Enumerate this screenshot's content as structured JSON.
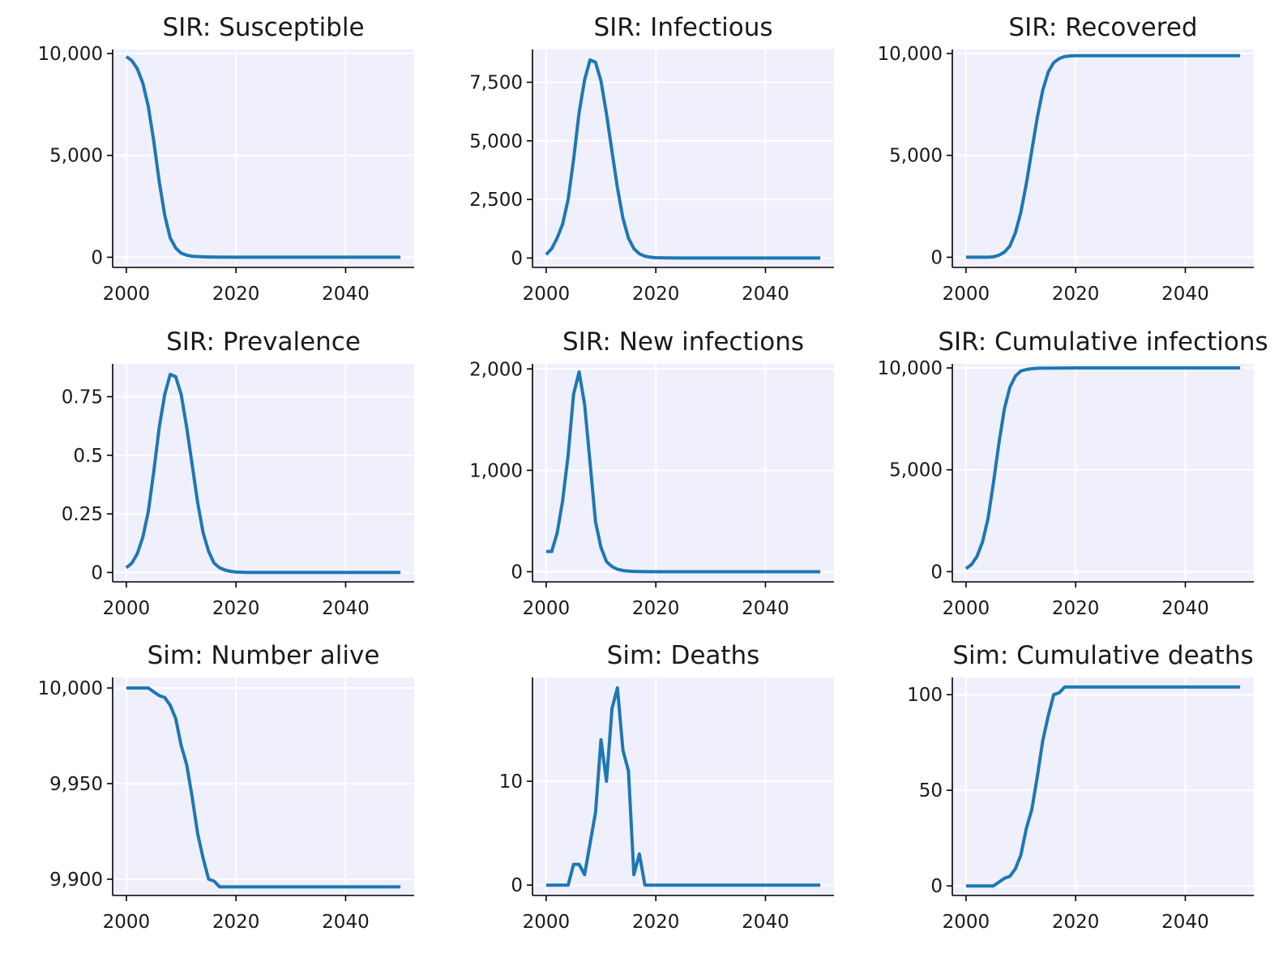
{
  "figure": {
    "line_color": "#1f77b4",
    "plot_bg": "#eff0fb",
    "grid_color": "#ffffff"
  },
  "chart_data": [
    {
      "type": "line",
      "title": "SIR: Susceptible",
      "xticks": [
        2000,
        2020,
        2040
      ],
      "xtick_labels": [
        "2000",
        "2020",
        "2040"
      ],
      "xlim": [
        1997.5,
        2052.5
      ],
      "yticks": [
        0,
        5000,
        10000
      ],
      "ytick_labels": [
        "0",
        "5,000",
        "10,000"
      ],
      "ylim": [
        -500,
        10200
      ],
      "grid": true,
      "series": [
        {
          "x": [
            2000,
            2001,
            2002,
            2003,
            2004,
            2005,
            2006,
            2007,
            2008,
            2009,
            2010,
            2011,
            2012,
            2014,
            2016,
            2020,
            2030,
            2040,
            2050
          ],
          "y": [
            9850,
            9650,
            9250,
            8550,
            7400,
            5700,
            3700,
            2050,
            950,
            450,
            200,
            100,
            50,
            20,
            10,
            0,
            0,
            0,
            0
          ]
        }
      ]
    },
    {
      "type": "line",
      "title": "SIR: Infectious",
      "xticks": [
        2000,
        2020,
        2040
      ],
      "xtick_labels": [
        "2000",
        "2020",
        "2040"
      ],
      "xlim": [
        1997.5,
        2052.5
      ],
      "yticks": [
        0,
        2500,
        5000,
        7500
      ],
      "ytick_labels": [
        "0",
        "2,500",
        "5,000",
        "7,500"
      ],
      "ylim": [
        -400,
        8900
      ],
      "grid": true,
      "series": [
        {
          "x": [
            2000,
            2001,
            2002,
            2003,
            2004,
            2005,
            2006,
            2007,
            2008,
            2009,
            2010,
            2011,
            2012,
            2013,
            2014,
            2015,
            2016,
            2017,
            2018,
            2019,
            2020,
            2022,
            2025,
            2030,
            2040,
            2050
          ],
          "y": [
            150,
            400,
            850,
            1450,
            2500,
            4200,
            6200,
            7600,
            8450,
            8350,
            7550,
            6150,
            4550,
            3000,
            1700,
            850,
            400,
            180,
            80,
            35,
            15,
            5,
            0,
            0,
            0,
            0
          ]
        }
      ]
    },
    {
      "type": "line",
      "title": "SIR: Recovered",
      "xticks": [
        2000,
        2020,
        2040
      ],
      "xtick_labels": [
        "2000",
        "2020",
        "2040"
      ],
      "xlim": [
        1997.5,
        2052.5
      ],
      "yticks": [
        0,
        5000,
        10000
      ],
      "ytick_labels": [
        "0",
        "5,000",
        "10,000"
      ],
      "ylim": [
        -500,
        10200
      ],
      "grid": true,
      "series": [
        {
          "x": [
            2000,
            2002,
            2004,
            2005,
            2006,
            2007,
            2008,
            2009,
            2010,
            2011,
            2012,
            2013,
            2014,
            2015,
            2016,
            2017,
            2018,
            2019,
            2020,
            2022,
            2030,
            2040,
            2050
          ],
          "y": [
            0,
            0,
            0,
            20,
            100,
            250,
            550,
            1200,
            2200,
            3600,
            5250,
            6850,
            8200,
            9100,
            9550,
            9750,
            9850,
            9880,
            9890,
            9895,
            9895,
            9895,
            9895
          ]
        }
      ]
    },
    {
      "type": "line",
      "title": "SIR: Prevalence",
      "xticks": [
        2000,
        2020,
        2040
      ],
      "xtick_labels": [
        "2000",
        "2020",
        "2040"
      ],
      "xlim": [
        1997.5,
        2052.5
      ],
      "yticks": [
        0,
        0.25,
        0.5,
        0.75
      ],
      "ytick_labels": [
        "0",
        "0.25",
        "0.5",
        "0.75"
      ],
      "ylim": [
        -0.04,
        0.89
      ],
      "grid": true,
      "series": [
        {
          "x": [
            2000,
            2001,
            2002,
            2003,
            2004,
            2005,
            2006,
            2007,
            2008,
            2009,
            2010,
            2011,
            2012,
            2013,
            2014,
            2015,
            2016,
            2017,
            2018,
            2019,
            2020,
            2022,
            2025,
            2030,
            2040,
            2050
          ],
          "y": [
            0.02,
            0.04,
            0.08,
            0.15,
            0.26,
            0.43,
            0.62,
            0.76,
            0.845,
            0.835,
            0.76,
            0.62,
            0.46,
            0.3,
            0.17,
            0.09,
            0.04,
            0.02,
            0.01,
            0.005,
            0.002,
            0,
            0,
            0,
            0,
            0
          ]
        }
      ]
    },
    {
      "type": "line",
      "title": "SIR: New infections",
      "xticks": [
        2000,
        2020,
        2040
      ],
      "xtick_labels": [
        "2000",
        "2020",
        "2040"
      ],
      "xlim": [
        1997.5,
        2052.5
      ],
      "yticks": [
        0,
        1000,
        2000
      ],
      "ytick_labels": [
        "0",
        "1,000",
        "2,000"
      ],
      "ylim": [
        -100,
        2050
      ],
      "grid": true,
      "series": [
        {
          "x": [
            2000,
            2001,
            2002,
            2003,
            2004,
            2005,
            2006,
            2007,
            2008,
            2009,
            2010,
            2011,
            2012,
            2013,
            2014,
            2015,
            2016,
            2018,
            2020,
            2030,
            2040,
            2050
          ],
          "y": [
            200,
            200,
            380,
            700,
            1150,
            1750,
            1970,
            1650,
            1080,
            490,
            240,
            100,
            50,
            25,
            12,
            6,
            3,
            1,
            0,
            0,
            0,
            0
          ]
        }
      ]
    },
    {
      "type": "line",
      "title": "SIR: Cumulative infections",
      "xticks": [
        2000,
        2020,
        2040
      ],
      "xtick_labels": [
        "2000",
        "2020",
        "2040"
      ],
      "xlim": [
        1997.5,
        2052.5
      ],
      "yticks": [
        0,
        5000,
        10000
      ],
      "ytick_labels": [
        "0",
        "5,000",
        "10,000"
      ],
      "ylim": [
        -500,
        10200
      ],
      "grid": true,
      "series": [
        {
          "x": [
            2000,
            2001,
            2002,
            2003,
            2004,
            2005,
            2006,
            2007,
            2008,
            2009,
            2010,
            2011,
            2012,
            2013,
            2014,
            2016,
            2020,
            2030,
            2040,
            2050
          ],
          "y": [
            150,
            350,
            750,
            1450,
            2600,
            4350,
            6300,
            8000,
            9050,
            9600,
            9850,
            9920,
            9960,
            9980,
            9990,
            9995,
            10000,
            10000,
            10000,
            10000
          ]
        }
      ]
    },
    {
      "type": "line",
      "title": "Sim: Number alive",
      "xticks": [
        2000,
        2020,
        2040
      ],
      "xtick_labels": [
        "2000",
        "2020",
        "2040"
      ],
      "xlim": [
        1997.5,
        2052.5
      ],
      "yticks": [
        9900,
        9950,
        10000
      ],
      "ytick_labels": [
        "9,900",
        "9,950",
        "10,000"
      ],
      "ylim": [
        9891.5,
        10005.5
      ],
      "grid": true,
      "series": [
        {
          "x": [
            2000,
            2001,
            2002,
            2003,
            2004,
            2005,
            2006,
            2007,
            2008,
            2009,
            2010,
            2011,
            2012,
            2013,
            2014,
            2015,
            2016,
            2017,
            2018,
            2020,
            2030,
            2040,
            2050
          ],
          "y": [
            10000,
            10000,
            10000,
            10000,
            10000,
            9998,
            9996,
            9995,
            9991,
            9984,
            9970,
            9960,
            9943,
            9924,
            9911,
            9900,
            9899,
            9896,
            9896,
            9896,
            9896,
            9896,
            9896
          ]
        }
      ]
    },
    {
      "type": "line",
      "title": "Sim: Deaths",
      "xticks": [
        2000,
        2020,
        2040
      ],
      "xtick_labels": [
        "2000",
        "2020",
        "2040"
      ],
      "xlim": [
        1997.5,
        2052.5
      ],
      "yticks": [
        0,
        10
      ],
      "ytick_labels": [
        "0",
        "10"
      ],
      "ylim": [
        -1,
        20
      ],
      "grid": true,
      "series": [
        {
          "x": [
            2000,
            2001,
            2002,
            2003,
            2004,
            2005,
            2006,
            2007,
            2008,
            2009,
            2010,
            2011,
            2012,
            2013,
            2014,
            2015,
            2016,
            2017,
            2018,
            2019,
            2020,
            2030,
            2040,
            2050
          ],
          "y": [
            0,
            0,
            0,
            0,
            0,
            2,
            2,
            1,
            4,
            7,
            14,
            10,
            17,
            19,
            13,
            11,
            1,
            3,
            0,
            0,
            0,
            0,
            0,
            0
          ]
        }
      ]
    },
    {
      "type": "line",
      "title": "Sim: Cumulative deaths",
      "xticks": [
        2000,
        2020,
        2040
      ],
      "xtick_labels": [
        "2000",
        "2020",
        "2040"
      ],
      "xlim": [
        1997.5,
        2052.5
      ],
      "yticks": [
        0,
        50,
        100
      ],
      "ytick_labels": [
        "0",
        "50",
        "100"
      ],
      "ylim": [
        -5,
        109
      ],
      "grid": true,
      "series": [
        {
          "x": [
            2000,
            2001,
            2002,
            2003,
            2004,
            2005,
            2006,
            2007,
            2008,
            2009,
            2010,
            2011,
            2012,
            2013,
            2014,
            2015,
            2016,
            2017,
            2018,
            2019,
            2020,
            2030,
            2040,
            2050
          ],
          "y": [
            0,
            0,
            0,
            0,
            0,
            0,
            2,
            4,
            5,
            9,
            16,
            30,
            40,
            57,
            76,
            89,
            100,
            101,
            104,
            104,
            104,
            104,
            104,
            104
          ]
        }
      ]
    }
  ]
}
